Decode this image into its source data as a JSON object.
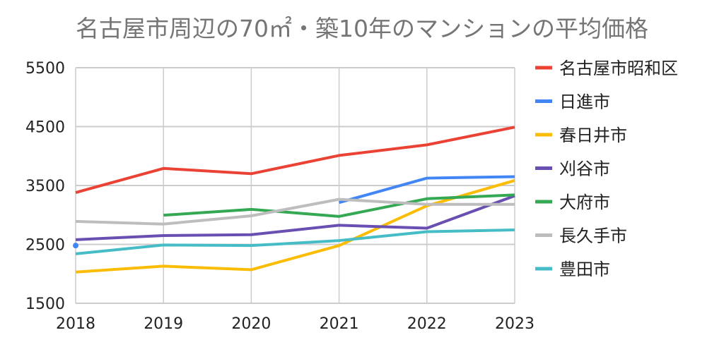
{
  "chart_data": {
    "type": "line",
    "title": "名古屋市周辺の70㎡・築10年のマンションの平均価格",
    "xlabel": "",
    "ylabel": "",
    "x": [
      "2018",
      "2019",
      "2020",
      "2021",
      "2022",
      "2023"
    ],
    "ylim": [
      1500,
      5500
    ],
    "yticks": [
      "1500",
      "2500",
      "3500",
      "4500",
      "5500"
    ],
    "grid": true,
    "legend_position": "right",
    "series": [
      {
        "name": "名古屋市昭和区",
        "color": "#ea4335",
        "values": [
          3380,
          3790,
          3700,
          4010,
          4190,
          4490
        ]
      },
      {
        "name": "日進市",
        "color": "#4285f4",
        "values": [
          2480,
          null,
          null,
          3210,
          3625,
          3650
        ]
      },
      {
        "name": "春日井市",
        "color": "#fbbc04",
        "values": [
          2030,
          2130,
          2070,
          2480,
          3155,
          3585
        ]
      },
      {
        "name": "刈谷市",
        "color": "#6a4fb3",
        "values": [
          2580,
          2650,
          2665,
          2825,
          2775,
          3325
        ]
      },
      {
        "name": "大府市",
        "color": "#34a853",
        "values": [
          null,
          2995,
          3095,
          2975,
          3275,
          3340
        ]
      },
      {
        "name": "長久手市",
        "color": "#bdbdbd",
        "values": [
          2890,
          2845,
          2985,
          3265,
          3180,
          3180
        ]
      },
      {
        "name": "豊田市",
        "color": "#46bdc6",
        "values": [
          2340,
          2490,
          2480,
          2565,
          2715,
          2745
        ]
      }
    ]
  }
}
